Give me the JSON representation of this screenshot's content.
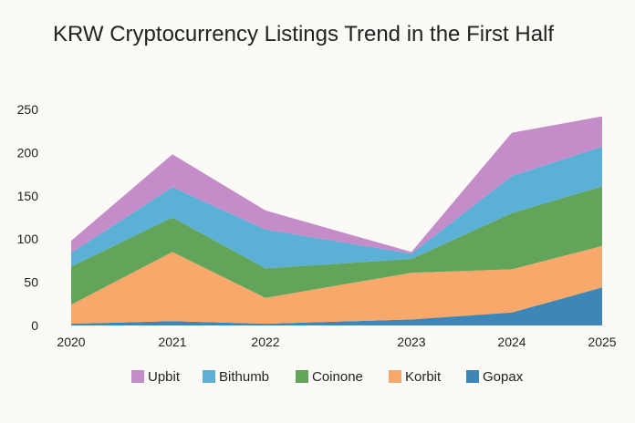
{
  "chart_data": {
    "type": "area",
    "stacked": true,
    "title": "KRW Cryptocurrency Listings Trend in the First Half",
    "xlabel": "",
    "ylabel": "",
    "x": [
      2020,
      2021,
      2022,
      2023,
      2024,
      2025
    ],
    "x_tick_labels": [
      "2020",
      "2021",
      "2022",
      "2023",
      "2024",
      "2025"
    ],
    "y_ticks": [
      0,
      50,
      100,
      150,
      200,
      250
    ],
    "y_tick_labels": [
      "0",
      "50",
      "100",
      "150",
      "200",
      "250"
    ],
    "ylim": [
      0,
      250
    ],
    "grid": false,
    "legend_position": "bottom",
    "series": [
      {
        "name": "Gopax",
        "values": [
          2,
          5,
          2,
          7,
          15,
          44
        ],
        "color": "#3d87b8"
      },
      {
        "name": "Korbit",
        "values": [
          22,
          80,
          30,
          54,
          50,
          48
        ],
        "color": "#f7a86a"
      },
      {
        "name": "Coinone",
        "values": [
          44,
          40,
          34,
          16,
          65,
          69
        ],
        "color": "#63a45b"
      },
      {
        "name": "Bithumb",
        "values": [
          16,
          35,
          45,
          6,
          43,
          46
        ],
        "color": "#5bb0d6"
      },
      {
        "name": "Upbit",
        "values": [
          14,
          38,
          22,
          2,
          50,
          35
        ],
        "color": "#c48cc9"
      }
    ],
    "legend_order": [
      "Upbit",
      "Bithumb",
      "Coinone",
      "Korbit",
      "Gopax"
    ]
  }
}
